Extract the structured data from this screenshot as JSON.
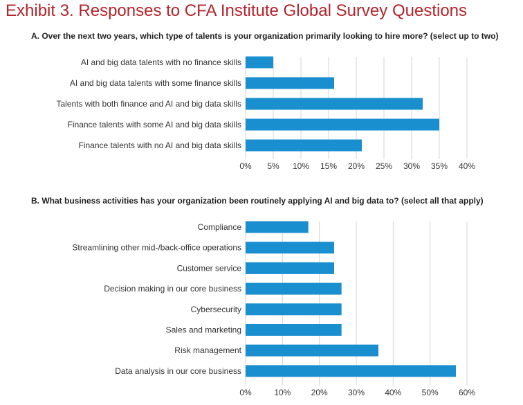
{
  "title": "Exhibit 3. Responses to CFA Institute Global Survey Questions",
  "colors": {
    "title": "#b3242b",
    "bar": "#1a8fd0",
    "grid": "#d4d4d4"
  },
  "chart_data": [
    {
      "type": "bar",
      "orientation": "horizontal",
      "title": "A. Over the next two years, which type of talents is your organization primarily looking to hire more? (select up to two)",
      "categories": [
        "AI and big data talents with no finance skills",
        "AI and big data talents with some finance skills",
        "Talents with both finance and AI and big data skills",
        "Finance talents with some AI and big data skills",
        "Finance talents with no AI and big data skills"
      ],
      "values": [
        5,
        16,
        32,
        35,
        21
      ],
      "xlim": [
        0,
        40
      ],
      "ticks": [
        "0%",
        "5%",
        "10%",
        "15%",
        "20%",
        "25%",
        "30%",
        "35%",
        "40%"
      ],
      "grid": true
    },
    {
      "type": "bar",
      "orientation": "horizontal",
      "title": "B. What business activities has your organization been routinely applying AI and big data to? (select all that apply)",
      "categories": [
        "Compliance",
        "Streamlining other mid-/back-office operations",
        "Customer service",
        "Decision making in our core business",
        "Cybersecurity",
        "Sales and marketing",
        "Risk management",
        "Data analysis in our core business"
      ],
      "values": [
        17,
        24,
        24,
        26,
        26,
        26,
        36,
        57
      ],
      "xlim": [
        0,
        60
      ],
      "ticks": [
        "0%",
        "10%",
        "20%",
        "30%",
        "40%",
        "50%",
        "60%"
      ],
      "grid": true
    }
  ]
}
